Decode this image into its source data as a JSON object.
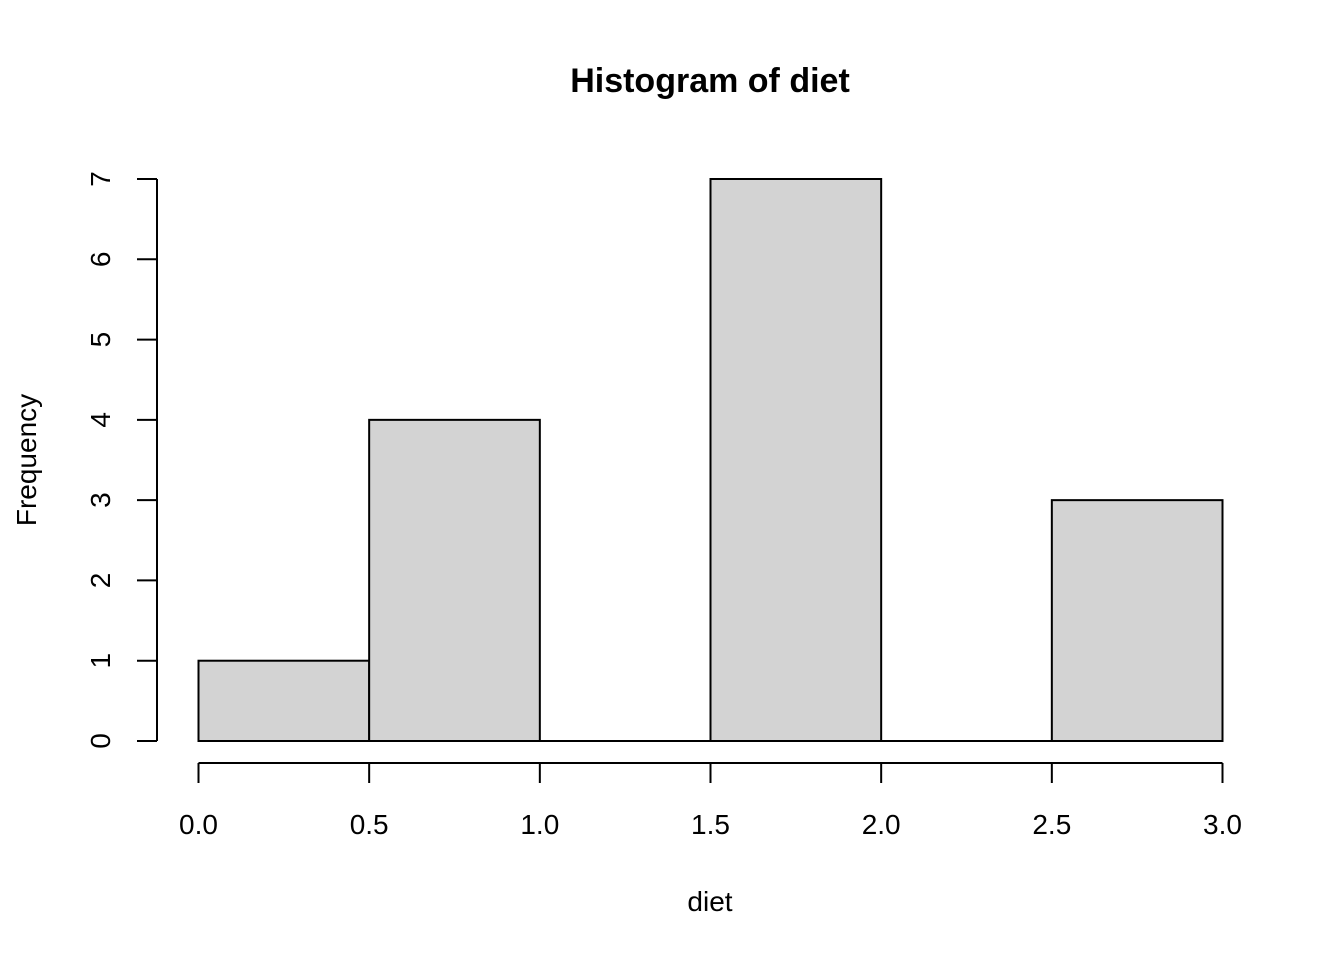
{
  "chart_data": {
    "type": "bar",
    "title": "Histogram of diet",
    "xlabel": "diet",
    "ylabel": "Frequency",
    "bins": [
      {
        "x0": 0.0,
        "x1": 0.5,
        "count": 1
      },
      {
        "x0": 0.5,
        "x1": 1.0,
        "count": 4
      },
      {
        "x0": 1.0,
        "x1": 1.5,
        "count": 0
      },
      {
        "x0": 1.5,
        "x1": 2.0,
        "count": 7
      },
      {
        "x0": 2.0,
        "x1": 2.5,
        "count": 0
      },
      {
        "x0": 2.5,
        "x1": 3.0,
        "count": 3
      }
    ],
    "xlim": [
      0.0,
      3.0
    ],
    "ylim": [
      0,
      7
    ],
    "xticks": [
      "0.0",
      "0.5",
      "1.0",
      "1.5",
      "2.0",
      "2.5",
      "3.0"
    ],
    "yticks": [
      "0",
      "1",
      "2",
      "3",
      "4",
      "5",
      "6",
      "7"
    ],
    "grid": false,
    "bar_fill": "#d3d3d3",
    "bar_stroke": "#000000"
  }
}
